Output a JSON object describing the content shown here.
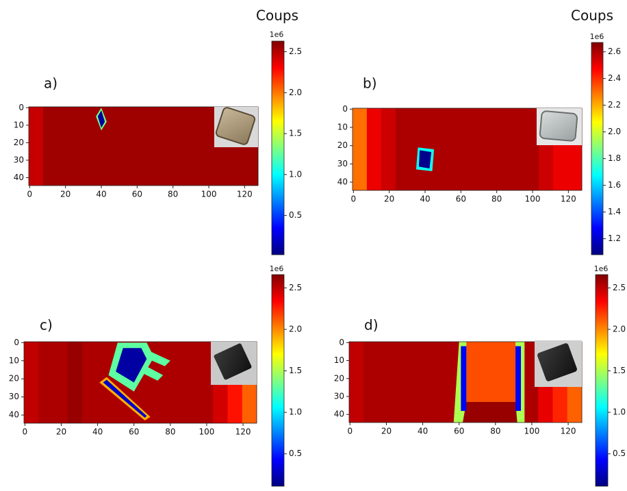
{
  "chart_data": [
    {
      "type": "heatmap",
      "label": "a)",
      "colorbar_label": "Coups",
      "colorbar_offset": "1e6",
      "colormap": "jet",
      "xlim": [
        -0.5,
        127.5
      ],
      "ylim": [
        -0.5,
        44.5
      ],
      "xticks": [
        0,
        20,
        40,
        60,
        80,
        100,
        120
      ],
      "yticks": [
        0,
        10,
        20,
        30,
        40
      ],
      "clim": [
        0.02,
        2.63
      ],
      "cticks": [
        0.5,
        {
          "value": 1,
          "label": "1.0"
        },
        1.5,
        {
          "value": 2,
          "label": "2.0"
        },
        2.5
      ],
      "column_width": 8,
      "column_values": [
        2.45,
        2.55,
        2.55,
        2.55,
        2.55,
        2.55,
        2.55,
        2.55,
        2.55,
        2.55,
        2.55,
        2.55,
        2.55,
        2.55,
        2.55,
        2.55
      ],
      "regions": [
        {
          "points": [
            [
              37,
              5
            ],
            [
              40,
              0
            ],
            [
              43,
              8
            ],
            [
              40,
              13
            ]
          ],
          "value": 1.3
        },
        {
          "points": [
            [
              38,
              5
            ],
            [
              40,
              1.5
            ],
            [
              42,
              8
            ],
            [
              40,
              11.5
            ]
          ],
          "value": 0.1
        }
      ]
    },
    {
      "type": "heatmap",
      "label": "b)",
      "colorbar_label": "Coups",
      "colorbar_offset": "1e6",
      "colormap": "jet",
      "xlim": [
        -0.5,
        127.5
      ],
      "ylim": [
        -0.5,
        44.5
      ],
      "xticks": [
        0,
        20,
        40,
        60,
        80,
        100,
        120
      ],
      "yticks": [
        0,
        10,
        20,
        30,
        40
      ],
      "clim": [
        1.08,
        2.67
      ],
      "cticks": [
        1.2,
        1.4,
        1.6,
        1.8,
        {
          "value": 2,
          "label": "2.0"
        },
        2.2,
        2.4,
        2.6
      ],
      "column_width": 8,
      "column_values": [
        2.3,
        2.5,
        2.55,
        2.6,
        2.6,
        2.6,
        2.6,
        2.6,
        2.6,
        2.6,
        2.6,
        2.6,
        2.6,
        2.55,
        2.5,
        2.5
      ],
      "regions": [
        {
          "points": [
            [
              36,
              21
            ],
            [
              45,
              22
            ],
            [
              44,
              34
            ],
            [
              35,
              33
            ]
          ],
          "value": 1.7
        },
        {
          "points": [
            [
              37,
              22.5
            ],
            [
              43.5,
              23.5
            ],
            [
              42.5,
              32.5
            ],
            [
              36.5,
              31.5
            ]
          ],
          "value": 1.1
        }
      ]
    },
    {
      "type": "heatmap",
      "label": "c)",
      "colorbar_offset": "1e6",
      "colormap": "jet",
      "xlim": [
        -0.5,
        127.5
      ],
      "ylim": [
        -0.5,
        44.5
      ],
      "xticks": [
        0,
        20,
        40,
        60,
        80,
        100,
        120
      ],
      "yticks": [
        0,
        10,
        20,
        30,
        40
      ],
      "clim": [
        0.11,
        2.66
      ],
      "cticks": [
        0.5,
        {
          "value": 1,
          "label": "1.0"
        },
        1.5,
        {
          "value": 2,
          "label": "2.0"
        },
        2.5
      ],
      "column_width": 8,
      "column_values": [
        2.5,
        2.55,
        2.55,
        2.6,
        2.55,
        2.55,
        2.55,
        2.55,
        2.55,
        2.55,
        2.55,
        2.55,
        2.55,
        2.45,
        2.3,
        2.1
      ],
      "regions": [
        {
          "points": [
            [
              41,
              22
            ],
            [
              45,
              19
            ],
            [
              69,
              41
            ],
            [
              66,
              43
            ]
          ],
          "value": 1.9
        },
        {
          "points": [
            [
              43,
              22
            ],
            [
              45,
              20.5
            ],
            [
              67,
              40.5
            ],
            [
              66,
              41.5
            ]
          ],
          "value": 0.3
        },
        {
          "points": [
            [
              65,
              3
            ],
            [
              80,
              10
            ],
            [
              77,
              13
            ],
            [
              63,
              7
            ]
          ],
          "value": 1.3
        },
        {
          "points": [
            [
              63,
              11
            ],
            [
              76,
              18
            ],
            [
              73,
              21
            ],
            [
              61,
              15
            ]
          ],
          "value": 1.3
        },
        {
          "points": [
            [
              51,
              0
            ],
            [
              67,
              0
            ],
            [
              71,
              8
            ],
            [
              60,
              27
            ],
            [
              46,
              18
            ]
          ],
          "value": 1.3
        },
        {
          "points": [
            [
              54,
              3
            ],
            [
              64,
              3
            ],
            [
              67,
              9
            ],
            [
              60,
              22
            ],
            [
              50,
              16
            ]
          ],
          "value": 0.2
        }
      ]
    },
    {
      "type": "heatmap",
      "label": "d)",
      "colorbar_offset": "1e6",
      "colormap": "jet",
      "xlim": [
        -0.5,
        127.5
      ],
      "ylim": [
        -0.5,
        44.5
      ],
      "xticks": [
        0,
        20,
        40,
        60,
        80,
        100,
        120
      ],
      "yticks": [
        0,
        10,
        20,
        30,
        40
      ],
      "clim": [
        0.11,
        2.66
      ],
      "cticks": [
        0.5,
        {
          "value": 1,
          "label": "1.0"
        },
        1.5,
        {
          "value": 2,
          "label": "2.0"
        },
        2.5
      ],
      "column_width": 8,
      "column_values": [
        2.5,
        2.55,
        2.55,
        2.55,
        2.55,
        2.55,
        2.55,
        2.55,
        2.55,
        2.55,
        2.55,
        2.55,
        2.55,
        2.4,
        2.25,
        2.1
      ],
      "regions": [
        {
          "points": [
            [
              60,
              -0.5
            ],
            [
              96,
              -0.5
            ],
            [
              96,
              44.5
            ],
            [
              57,
              44.5
            ]
          ],
          "value": 1.5
        },
        {
          "points": [
            [
              64,
              -0.5
            ],
            [
              91,
              -0.5
            ],
            [
              91,
              33
            ],
            [
              64,
              33
            ]
          ],
          "value": 2.15
        },
        {
          "points": [
            [
              64,
              33
            ],
            [
              91,
              33
            ],
            [
              92,
              44.5
            ],
            [
              62,
              44.5
            ]
          ],
          "value": 2.6
        },
        {
          "points": [
            [
              61,
              2
            ],
            [
              64,
              2
            ],
            [
              64,
              38
            ],
            [
              61,
              38
            ]
          ],
          "value": 0.4
        },
        {
          "points": [
            [
              91,
              2
            ],
            [
              94,
              2
            ],
            [
              94,
              38
            ],
            [
              91,
              38
            ]
          ],
          "value": 0.4
        }
      ]
    }
  ]
}
